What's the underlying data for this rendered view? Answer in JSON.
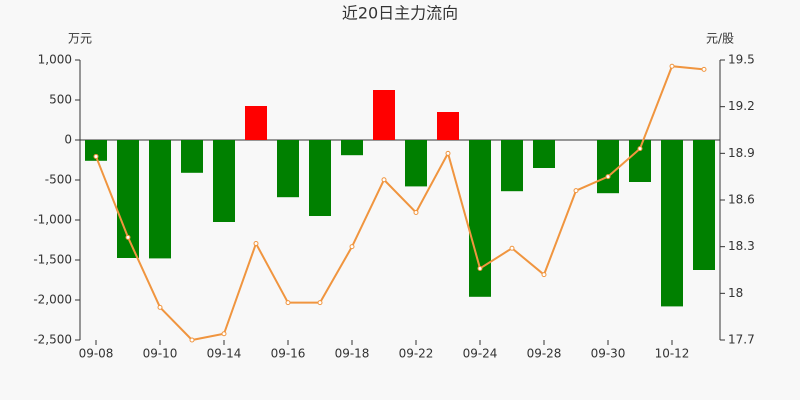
{
  "chart_data": {
    "type": "bar-line",
    "title": "近20日主力流向",
    "y_label": "万元",
    "y2_label": "元/股",
    "categories": [
      "09-08",
      null,
      "09-10",
      null,
      "09-14",
      null,
      "09-16",
      null,
      "09-18",
      null,
      "09-22",
      null,
      "09-24",
      null,
      "09-28",
      null,
      "09-30",
      null,
      "10-12",
      null
    ],
    "series": [
      {
        "type": "bar",
        "positive_color": "#ff0000",
        "negative_color": "#008000",
        "values": [
          -260,
          -1475,
          -1480,
          -410,
          -1025,
          425,
          -715,
          -950,
          -190,
          625,
          -580,
          350,
          -1960,
          -640,
          -350,
          0,
          -665,
          -525,
          -2080,
          -1625
        ]
      },
      {
        "type": "line",
        "axis": "y2",
        "color": "#f0953f",
        "values": [
          18.88,
          18.36,
          17.91,
          17.7,
          17.74,
          18.32,
          17.94,
          17.94,
          18.3,
          18.73,
          18.52,
          18.9,
          18.16,
          18.29,
          18.12,
          18.66,
          18.75,
          18.93,
          19.46,
          19.44
        ]
      }
    ],
    "ylim": [
      -2500,
      1000
    ],
    "yticks": [
      {
        "value": -2500,
        "label": "-2,500"
      },
      {
        "value": -2000,
        "label": "-2,000"
      },
      {
        "value": -1500,
        "label": "-1,500"
      },
      {
        "value": -1000,
        "label": "-1,000"
      },
      -500,
      0,
      500,
      {
        "value": 1000,
        "label": "1,000"
      }
    ],
    "y2lim": [
      17.7,
      19.5
    ],
    "y2ticks": [
      17.7,
      18,
      18.3,
      18.6,
      18.9,
      19.2,
      19.5
    ],
    "grid": false
  }
}
